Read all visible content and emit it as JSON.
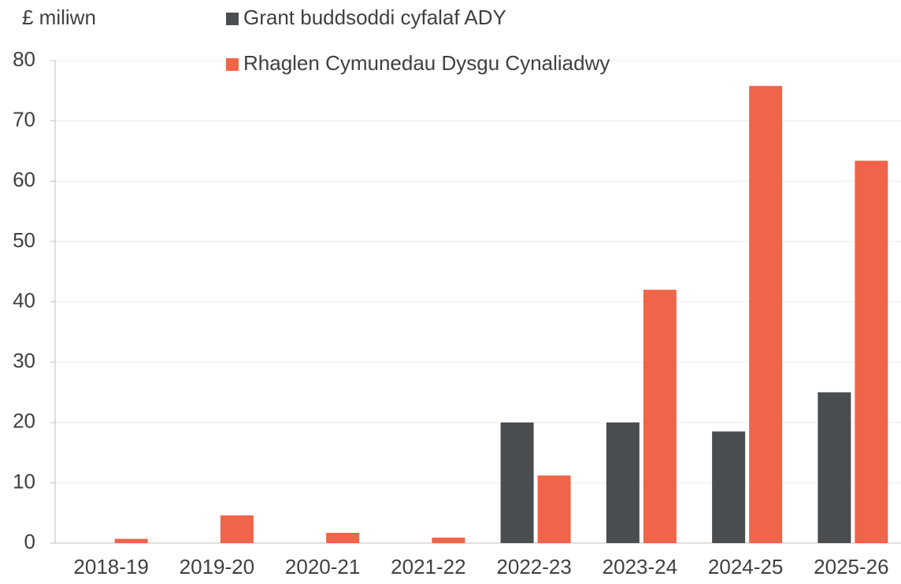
{
  "chart_data": {
    "type": "bar",
    "y_axis_label": "£ miliwn",
    "categories": [
      "2018-19",
      "2019-20",
      "2020-21",
      "2021-22",
      "2022-23",
      "2023-24",
      "2024-25",
      "2025-26"
    ],
    "series": [
      {
        "name": "Grant buddsoddi cyfalaf ADY",
        "color": "#4a4d50",
        "values": [
          0,
          0,
          0,
          0,
          20,
          20,
          18.5,
          25
        ]
      },
      {
        "name": "Rhaglen Cymunedau Dysgu Cynaliadwy",
        "color": "#f0644a",
        "values": [
          0.7,
          4.6,
          1.7,
          0.9,
          11.2,
          42,
          75.8,
          63.4
        ]
      }
    ],
    "ylim": [
      0,
      80
    ],
    "yticks": [
      0,
      10,
      20,
      30,
      40,
      50,
      60,
      70,
      80
    ],
    "grid": true
  }
}
